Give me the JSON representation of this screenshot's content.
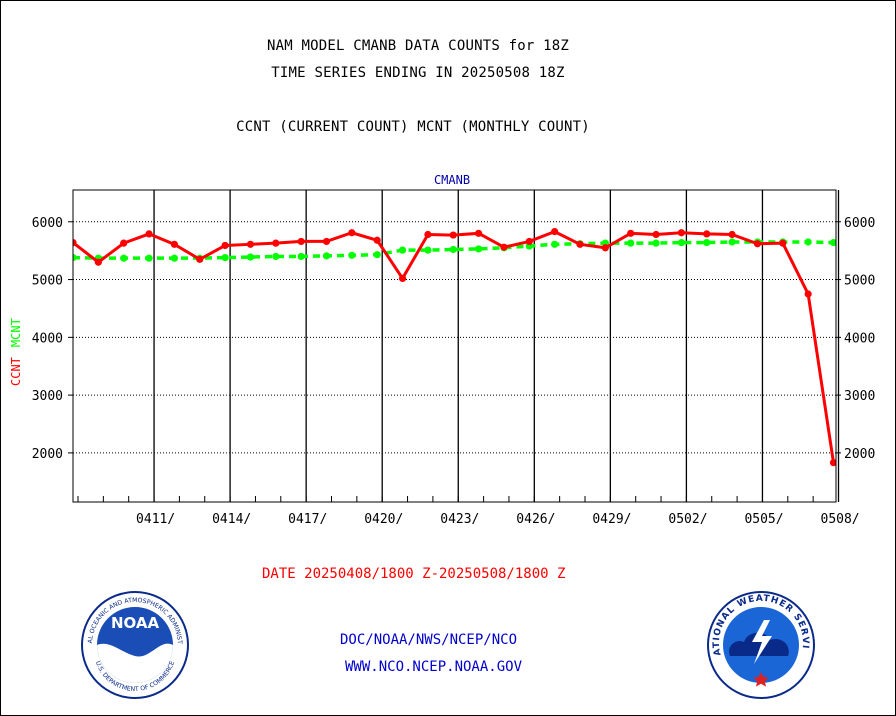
{
  "header": {
    "title_line1": "NAM MODEL CMANB DATA COUNTS for 18Z",
    "title_line2": "TIME SERIES ENDING IN 20250508 18Z",
    "subtitle": "CCNT (CURRENT COUNT) MCNT (MONTHLY COUNT)"
  },
  "chart_data": {
    "type": "line",
    "title": "CMANB",
    "ylabel_parts": [
      "CCNT",
      "MCNT"
    ],
    "xlabel": "DATE 20250408/1800 Z-20250508/1800 Z",
    "ylim": [
      1150,
      6550
    ],
    "yticks": [
      2000,
      3000,
      4000,
      5000,
      6000
    ],
    "xticks": [
      {
        "day": 3,
        "label": "0411/"
      },
      {
        "day": 6,
        "label": "0414/"
      },
      {
        "day": 9,
        "label": "0417/"
      },
      {
        "day": 12,
        "label": "0420/"
      },
      {
        "day": 15,
        "label": "0423/"
      },
      {
        "day": 18,
        "label": "0426/"
      },
      {
        "day": 21,
        "label": "0429/"
      },
      {
        "day": 24,
        "label": "0502/"
      },
      {
        "day": 27,
        "label": "0505/"
      },
      {
        "day": 30,
        "label": "0508/"
      }
    ],
    "grid": true,
    "colors": {
      "CCNT": "#ff0000",
      "MCNT": "#00ff00",
      "title": "#0000aa"
    },
    "series": [
      {
        "name": "CCNT",
        "x": [
          0,
          1,
          2,
          3,
          4,
          5,
          6,
          7,
          8,
          9,
          10,
          11,
          12,
          13,
          14,
          15,
          16,
          17,
          18,
          19,
          20,
          21,
          22,
          23,
          24,
          25,
          26,
          27,
          28,
          29,
          30
        ],
        "values": [
          5640,
          5300,
          5630,
          5790,
          5610,
          5350,
          5590,
          5610,
          5630,
          5660,
          5660,
          5810,
          5680,
          5020,
          5780,
          5770,
          5800,
          5560,
          5660,
          5830,
          5610,
          5550,
          5800,
          5780,
          5810,
          5790,
          5780,
          5620,
          5630,
          4750,
          1830
        ]
      },
      {
        "name": "MCNT",
        "x": [
          0,
          1,
          2,
          3,
          4,
          5,
          6,
          7,
          8,
          9,
          10,
          11,
          12,
          13,
          14,
          15,
          16,
          17,
          18,
          19,
          20,
          21,
          22,
          23,
          24,
          25,
          26,
          27,
          28,
          29,
          30
        ],
        "values": [
          5380,
          5370,
          5370,
          5370,
          5370,
          5370,
          5380,
          5390,
          5400,
          5400,
          5410,
          5420,
          5430,
          5510,
          5510,
          5520,
          5530,
          5550,
          5580,
          5610,
          5620,
          5630,
          5630,
          5630,
          5640,
          5640,
          5650,
          5650,
          5650,
          5650,
          5640
        ]
      }
    ]
  },
  "footer": {
    "link1": "DOC/NOAA/NWS/NCEP/NCO",
    "link2": "WWW.NCO.NCEP.NOAA.GOV",
    "noaa_logo_text": "NOAA",
    "noaa_seal_text": "NATIONAL OCEANIC AND ATMOSPHERIC ADMINISTRATION",
    "noaa_seal_text_bottom": "U.S. DEPARTMENT OF COMMERCE",
    "nws_seal_text": "NATIONAL WEATHER SERVICE"
  }
}
